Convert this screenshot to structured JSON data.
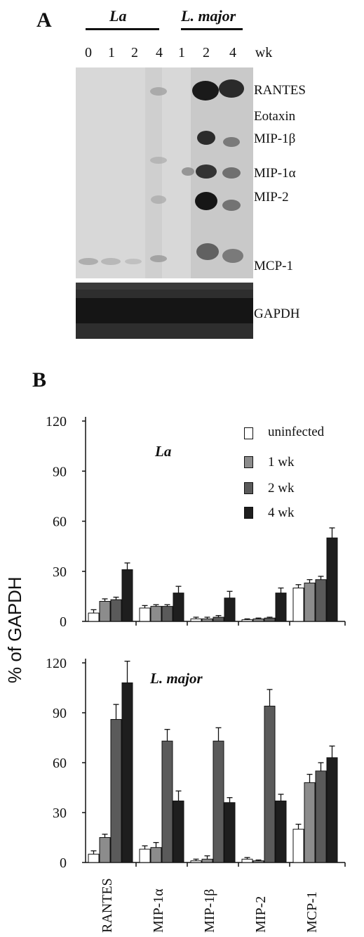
{
  "panel_a": {
    "letter": "A",
    "groups": [
      {
        "label": "La",
        "lanes": [
          "0",
          "1",
          "2",
          "4"
        ]
      },
      {
        "label": "L. major",
        "lanes": [
          "1",
          "2",
          "4"
        ]
      }
    ],
    "unit": "wk",
    "bands": [
      "RANTES",
      "Eotaxin",
      "MIP-1β",
      "MIP-1α",
      "MIP-2",
      "MCP-1"
    ],
    "control_band": "GAPDH"
  },
  "panel_b": {
    "letter": "B",
    "ylabel": "% of GAPDH",
    "legend": [
      {
        "label": "uninfected",
        "color": "#ffffff"
      },
      {
        "label": "1 wk",
        "color": "#8c8c8c"
      },
      {
        "label": "2 wk",
        "color": "#5a5a5a"
      },
      {
        "label": "4 wk",
        "color": "#1e1e1e"
      }
    ]
  },
  "chart_data": [
    {
      "type": "bar",
      "title": "La",
      "categories": [
        "RANTES",
        "MIP-1α",
        "MIP-1β",
        "MIP-2",
        "MCP-1"
      ],
      "ylim": [
        0,
        120
      ],
      "yticks": [
        "0",
        "30",
        "60",
        "90",
        "120"
      ],
      "series": [
        {
          "name": "uninfected",
          "values": [
            5,
            8,
            1.5,
            1,
            20
          ],
          "errors": [
            2,
            1.5,
            1,
            0.5,
            2
          ]
        },
        {
          "name": "1 wk",
          "values": [
            12,
            9,
            1.5,
            1.5,
            23
          ],
          "errors": [
            1.5,
            1,
            1,
            0.5,
            2
          ]
        },
        {
          "name": "2 wk",
          "values": [
            13,
            9,
            2.5,
            2,
            25
          ],
          "errors": [
            1.5,
            1,
            1,
            0.5,
            2
          ]
        },
        {
          "name": "4 wk",
          "values": [
            31,
            17,
            14,
            17,
            50
          ],
          "errors": [
            4,
            4,
            4,
            3,
            6
          ]
        }
      ]
    },
    {
      "type": "bar",
      "title": "L. major",
      "categories": [
        "RANTES",
        "MIP-1α",
        "MIP-1β",
        "MIP-2",
        "MCP-1"
      ],
      "ylim": [
        0,
        120
      ],
      "yticks": [
        "0",
        "30",
        "60",
        "90",
        "120"
      ],
      "series": [
        {
          "name": "uninfected",
          "values": [
            5,
            8,
            1,
            2,
            20
          ],
          "errors": [
            2,
            2,
            1,
            1,
            3
          ]
        },
        {
          "name": "1 wk",
          "values": [
            15,
            9,
            2,
            1,
            48
          ],
          "errors": [
            2,
            3,
            2,
            0.5,
            5
          ]
        },
        {
          "name": "2 wk",
          "values": [
            86,
            73,
            73,
            94,
            55
          ],
          "errors": [
            9,
            7,
            8,
            10,
            5
          ]
        },
        {
          "name": "4 wk",
          "values": [
            108,
            37,
            36,
            37,
            63
          ],
          "errors": [
            13,
            6,
            3,
            4,
            7
          ]
        }
      ]
    }
  ]
}
